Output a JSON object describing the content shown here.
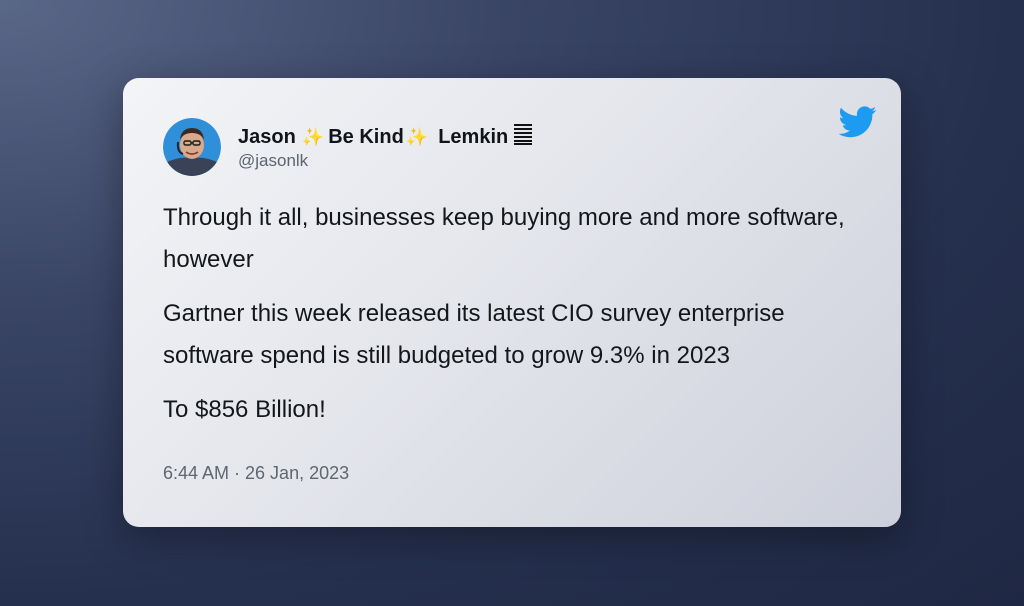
{
  "tweet": {
    "author": {
      "name_first": "Jason",
      "name_spark": "✨",
      "name_middle": "Be Kind",
      "name_last": "Lemkin",
      "handle": "@jasonlk",
      "avatar_icon": "person-avatar-icon",
      "flag_icon": "flag-icon"
    },
    "paragraphs": [
      "Through it all, businesses keep buying more and more software, however",
      "Gartner this week released its latest CIO survey enterprise software spend is still budgeted to grow 9.3% in 2023",
      "To $856 Billion!"
    ],
    "timestamp": "6:44 AM · 26 Jan, 2023",
    "brand_icon": "twitter-bird-icon",
    "brand_color": "#1d9bf0"
  }
}
